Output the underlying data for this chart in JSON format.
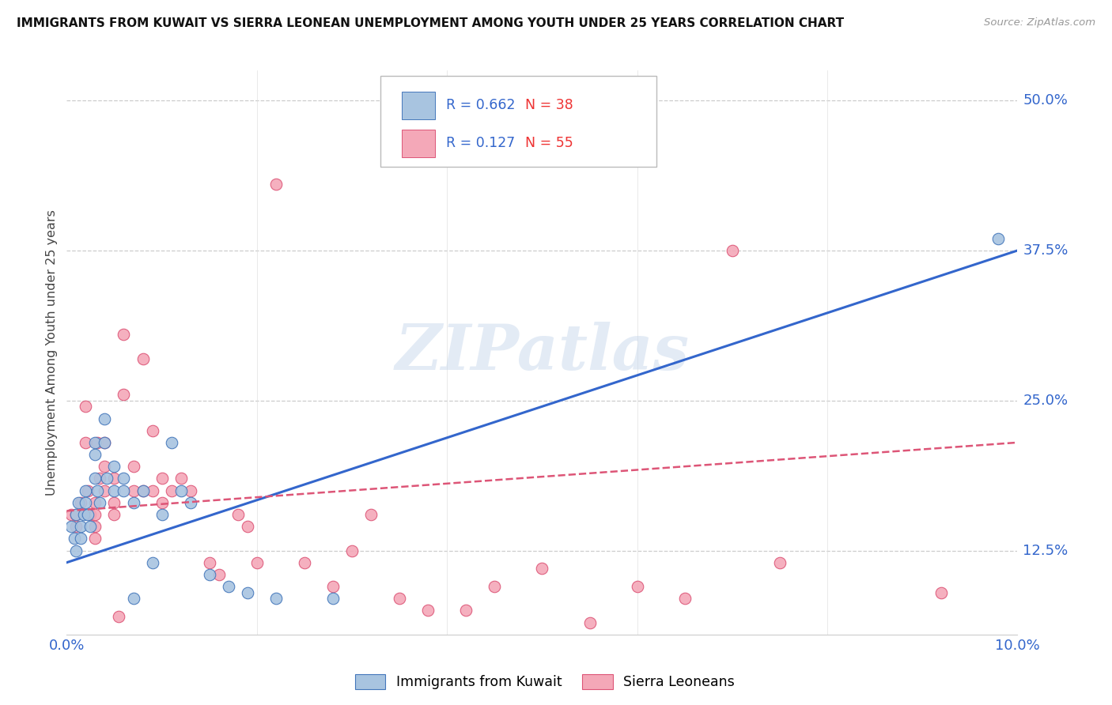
{
  "title": "IMMIGRANTS FROM KUWAIT VS SIERRA LEONEAN UNEMPLOYMENT AMONG YOUTH UNDER 25 YEARS CORRELATION CHART",
  "source": "Source: ZipAtlas.com",
  "ylabel": "Unemployment Among Youth under 25 years",
  "right_yticks": [
    0.125,
    0.25,
    0.375,
    0.5
  ],
  "right_yticklabels": [
    "12.5%",
    "25.0%",
    "37.5%",
    "50.0%"
  ],
  "xmin": 0.0,
  "xmax": 0.1,
  "ymin": 0.055,
  "ymax": 0.525,
  "legend_R1": "R = 0.662",
  "legend_N1": "N = 38",
  "legend_R2": "R = 0.127",
  "legend_N2": "N = 55",
  "legend_label1": "Immigrants from Kuwait",
  "legend_label2": "Sierra Leoneans",
  "blue_color": "#a8c4e0",
  "pink_color": "#f4a8b8",
  "blue_edge_color": "#4477bb",
  "pink_edge_color": "#dd5577",
  "blue_line_color": "#3366cc",
  "pink_line_color": "#dd5577",
  "watermark_color": "#c8d8ec",
  "blue_scatter_x": [
    0.0005,
    0.0008,
    0.001,
    0.001,
    0.0012,
    0.0015,
    0.0015,
    0.0018,
    0.002,
    0.002,
    0.0022,
    0.0025,
    0.003,
    0.003,
    0.003,
    0.0032,
    0.0035,
    0.004,
    0.004,
    0.0042,
    0.005,
    0.005,
    0.006,
    0.006,
    0.007,
    0.007,
    0.008,
    0.009,
    0.01,
    0.011,
    0.012,
    0.013,
    0.015,
    0.017,
    0.019,
    0.022,
    0.028,
    0.098
  ],
  "blue_scatter_y": [
    0.145,
    0.135,
    0.155,
    0.125,
    0.165,
    0.145,
    0.135,
    0.155,
    0.175,
    0.165,
    0.155,
    0.145,
    0.215,
    0.205,
    0.185,
    0.175,
    0.165,
    0.235,
    0.215,
    0.185,
    0.195,
    0.175,
    0.185,
    0.175,
    0.165,
    0.085,
    0.175,
    0.115,
    0.155,
    0.215,
    0.175,
    0.165,
    0.105,
    0.095,
    0.09,
    0.085,
    0.085,
    0.385
  ],
  "pink_scatter_x": [
    0.0005,
    0.001,
    0.001,
    0.0015,
    0.002,
    0.002,
    0.0022,
    0.0025,
    0.003,
    0.003,
    0.003,
    0.003,
    0.0032,
    0.0035,
    0.004,
    0.004,
    0.004,
    0.005,
    0.005,
    0.005,
    0.0055,
    0.006,
    0.006,
    0.007,
    0.007,
    0.008,
    0.008,
    0.009,
    0.009,
    0.01,
    0.01,
    0.011,
    0.012,
    0.013,
    0.015,
    0.016,
    0.018,
    0.019,
    0.02,
    0.022,
    0.025,
    0.028,
    0.03,
    0.032,
    0.035,
    0.038,
    0.042,
    0.045,
    0.05,
    0.055,
    0.06,
    0.065,
    0.07,
    0.075,
    0.092
  ],
  "pink_scatter_y": [
    0.155,
    0.155,
    0.145,
    0.165,
    0.245,
    0.215,
    0.175,
    0.155,
    0.165,
    0.155,
    0.145,
    0.135,
    0.215,
    0.185,
    0.215,
    0.195,
    0.175,
    0.185,
    0.165,
    0.155,
    0.07,
    0.305,
    0.255,
    0.195,
    0.175,
    0.285,
    0.175,
    0.225,
    0.175,
    0.185,
    0.165,
    0.175,
    0.185,
    0.175,
    0.115,
    0.105,
    0.155,
    0.145,
    0.115,
    0.43,
    0.115,
    0.095,
    0.125,
    0.155,
    0.085,
    0.075,
    0.075,
    0.095,
    0.11,
    0.065,
    0.095,
    0.085,
    0.375,
    0.115,
    0.09
  ],
  "blue_trendline_x": [
    0.0,
    0.1
  ],
  "blue_trendline_y": [
    0.115,
    0.375
  ],
  "pink_trendline_x": [
    0.0,
    0.1
  ],
  "pink_trendline_y": [
    0.158,
    0.215
  ]
}
